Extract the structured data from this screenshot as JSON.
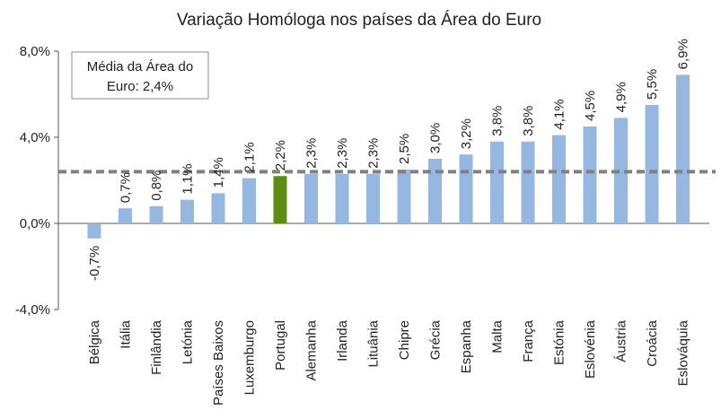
{
  "chart_data": {
    "type": "bar",
    "title": "Variação Homóloga nos países da Área do Euro",
    "categories": [
      "Bélgica",
      "Itália",
      "Finlândia",
      "Letónia",
      "Países Baixos",
      "Luxemburgo",
      "Portugal",
      "Alemanha",
      "Irlanda",
      "Lituânia",
      "Chipre",
      "Grécia",
      "Espanha",
      "Malta",
      "França",
      "Estónia",
      "Eslovénia",
      "Áustria",
      "Croácia",
      "Eslováquia"
    ],
    "values": [
      -0.7,
      0.7,
      0.8,
      1.1,
      1.4,
      2.1,
      2.2,
      2.3,
      2.3,
      2.3,
      2.5,
      3.0,
      3.2,
      3.8,
      3.8,
      4.1,
      4.5,
      4.9,
      5.5,
      6.9
    ],
    "data_labels": [
      "-0,7%",
      "0,7%",
      "0,8%",
      "1,1%",
      "1,4%",
      "2,1%",
      "2,2%",
      "2,3%",
      "2,3%",
      "2,3%",
      "2,5%",
      "3,0%",
      "3,2%",
      "3,8%",
      "3,8%",
      "4,1%",
      "4,5%",
      "4,9%",
      "5,5%",
      "6,9%"
    ],
    "ylim": [
      -4,
      8
    ],
    "yticks": [
      -4,
      0,
      4,
      8
    ],
    "ytick_labels": [
      "-4,0%",
      "0,0%",
      "4,0%",
      "8,0%"
    ],
    "xlabel": "",
    "ylabel": "",
    "grid": false,
    "reference_line": {
      "value": 2.4,
      "style": "dashed",
      "color": "#808080"
    },
    "legend_box": {
      "line1": "Média da Área do",
      "line2": "Euro: 2,4%",
      "placement": "top-left"
    },
    "colors": {
      "bar": "#95B8E3",
      "highlight": "#5E8E0F",
      "highlight_category": "Portugal",
      "axis": "#555555"
    }
  }
}
